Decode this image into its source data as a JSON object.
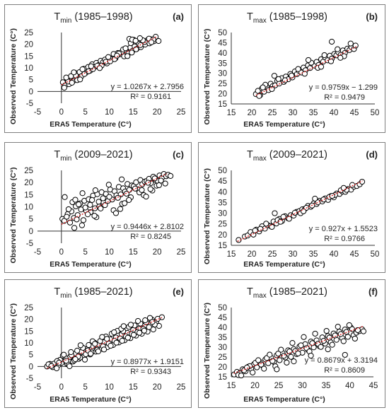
{
  "chart_data": [
    {
      "panel": "(a)",
      "title_main": "T",
      "title_sub": "min",
      "title_rest": " (1985–1998)",
      "type": "scatter",
      "xlabel": "ERA5 Temperature (C°)",
      "ylabel": "Observed Temperature (C°)",
      "xlim": [
        -5,
        25
      ],
      "ylim": [
        -5,
        25
      ],
      "xticks": [
        -5,
        0,
        5,
        10,
        15,
        20,
        25
      ],
      "yticks": [
        -5,
        0,
        5,
        10,
        15,
        20,
        25
      ],
      "x_axis_at": 0,
      "y_axis_at": 0,
      "equation": "y = 1.0267x + 2.7956",
      "r2": "R² = 0.9161",
      "fit": {
        "slope": 1.0267,
        "intercept": 2.7956,
        "x": [
          0,
          20
        ]
      },
      "x": [
        0.3,
        0.8,
        1.2,
        1.6,
        2.0,
        2.4,
        2.9,
        3.3,
        3.8,
        4.2,
        4.7,
        5.1,
        5.6,
        6.0,
        6.4,
        6.9,
        7.3,
        7.8,
        8.2,
        8.7,
        9.1,
        9.5,
        10.0,
        10.4,
        10.9,
        11.3,
        11.8,
        12.2,
        12.6,
        13.1,
        13.5,
        14.0,
        14.4,
        14.9,
        15.3,
        15.7,
        16.2,
        16.6,
        17.1,
        17.5,
        18.0,
        18.4,
        18.8,
        19.3,
        19.7,
        0.6,
        1.4,
        2.2,
        3.0,
        3.9,
        4.8,
        5.7,
        6.6,
        7.5,
        8.4,
        9.3,
        10.2,
        11.1,
        12.0,
        12.9,
        13.8,
        14.7,
        15.6,
        16.5,
        17.4,
        18.3,
        19.2,
        1.0,
        2.6,
        4.4,
        6.2,
        8.0,
        9.8,
        11.6,
        13.4,
        14.5,
        15.1,
        17.0,
        18.8,
        20.3,
        14.2,
        14.8,
        15.5,
        16.4
      ],
      "y": [
        3.9,
        2.6,
        5.2,
        3.1,
        6.5,
        4.3,
        7.8,
        4.8,
        8.2,
        6.5,
        9.6,
        7.9,
        10.4,
        8.8,
        11.5,
        10.3,
        12.1,
        11.2,
        13.0,
        12.4,
        13.5,
        11.9,
        14.2,
        13.6,
        15.9,
        14.1,
        16.3,
        15.8,
        16.7,
        14.9,
        17.4,
        16.2,
        18.6,
        17.3,
        19.1,
        18.0,
        20.2,
        18.8,
        20.6,
        19.9,
        21.8,
        20.4,
        22.1,
        21.3,
        23.2,
        1.6,
        4.2,
        3.7,
        6.8,
        5.1,
        7.4,
        8.6,
        9.5,
        10.9,
        11.0,
        12.6,
        12.8,
        13.7,
        16.1,
        17.8,
        15.0,
        16.5,
        17.9,
        19.7,
        21.0,
        22.4,
        22.0,
        5.9,
        8.1,
        9.4,
        10.7,
        9.9,
        14.6,
        15.2,
        18.3,
        20.5,
        21.9,
        21.7,
        20.9,
        21.4,
        22.3,
        22.0,
        21.5,
        22.6
      ]
    },
    {
      "panel": "(b)",
      "title_main": "T",
      "title_sub": "max",
      "title_rest": " (1985–1998)",
      "type": "scatter",
      "xlabel": "ERA5 Temperature (C°)",
      "ylabel": "Observed Temperature (C°)",
      "xlim": [
        15,
        50
      ],
      "ylim": [
        15,
        50
      ],
      "xticks": [
        15,
        20,
        25,
        30,
        35,
        40,
        45,
        50
      ],
      "yticks": [
        15,
        20,
        25,
        30,
        35,
        40,
        45,
        50
      ],
      "x_axis_at": 15,
      "y_axis_at": 15,
      "equation": "y = 0.9759x − 1.299",
      "r2": "R² = 0.9479",
      "fit": {
        "slope": 0.9759,
        "intercept": -1.299,
        "x": [
          21,
          45.5
        ]
      },
      "x": [
        21.0,
        21.5,
        22.0,
        22.5,
        23.0,
        23.6,
        24.1,
        24.6,
        25.1,
        25.7,
        26.2,
        26.7,
        27.3,
        27.8,
        28.3,
        28.9,
        29.4,
        29.9,
        30.5,
        31.0,
        31.5,
        32.1,
        32.6,
        33.1,
        33.7,
        34.2,
        34.7,
        35.3,
        35.8,
        36.3,
        36.9,
        37.4,
        37.9,
        38.5,
        39.0,
        39.5,
        40.1,
        40.6,
        41.1,
        41.7,
        42.2,
        42.7,
        43.3,
        43.8,
        44.3,
        44.9,
        45.3,
        21.8,
        23.3,
        24.9,
        26.5,
        28.1,
        29.7,
        31.3,
        32.9,
        34.5,
        36.1,
        37.7,
        39.3,
        40.9,
        42.5,
        44.1,
        39.5,
        22.7,
        25.5,
        33.8,
        36.9,
        41.6
      ],
      "y": [
        19.8,
        21.4,
        19.2,
        22.6,
        21.0,
        23.5,
        21.8,
        24.9,
        23.7,
        24.1,
        26.3,
        25.0,
        27.6,
        25.8,
        28.4,
        27.1,
        29.7,
        28.0,
        30.9,
        29.6,
        31.2,
        30.4,
        32.8,
        31.5,
        33.9,
        32.6,
        34.7,
        33.8,
        35.6,
        34.1,
        36.9,
        35.7,
        37.8,
        36.4,
        38.6,
        37.2,
        39.5,
        38.8,
        40.3,
        39.1,
        41.2,
        40.0,
        42.1,
        41.4,
        42.8,
        41.9,
        43.6,
        18.9,
        24.4,
        22.3,
        27.2,
        26.6,
        28.9,
        32.1,
        29.8,
        35.2,
        32.7,
        38.9,
        35.9,
        41.8,
        38.4,
        44.6,
        45.5,
        23.1,
        28.8,
        36.5,
        33.2,
        37.6
      ]
    },
    {
      "panel": "(c)",
      "title_main": "T",
      "title_sub": "min",
      "title_rest": " (2009–2021)",
      "type": "scatter",
      "xlabel": "ERA5 Temperature (C°)",
      "ylabel": "Observed Temperature (C°)",
      "xlim": [
        -5,
        25
      ],
      "ylim": [
        -5,
        25
      ],
      "xticks": [
        -5,
        0,
        5,
        10,
        15,
        20,
        25
      ],
      "yticks": [
        -5,
        0,
        5,
        10,
        15,
        20,
        25
      ],
      "x_axis_at": 0,
      "y_axis_at": 0,
      "equation": "y = 0.9446x + 2.8102",
      "r2": "R² = 0.8245",
      "fit": {
        "slope": 0.9446,
        "intercept": 2.8102,
        "x": [
          0,
          22
        ]
      },
      "x": [
        0.2,
        0.7,
        0.6,
        1.3,
        1.8,
        2.1,
        2.6,
        3.0,
        3.4,
        3.9,
        4.3,
        4.8,
        5.2,
        5.7,
        6.1,
        6.6,
        7.0,
        7.5,
        7.9,
        8.4,
        8.8,
        9.3,
        9.7,
        10.2,
        10.6,
        11.1,
        11.5,
        12.0,
        12.4,
        12.9,
        13.3,
        13.8,
        14.2,
        14.7,
        15.1,
        15.6,
        16.0,
        16.5,
        16.9,
        17.4,
        17.8,
        18.3,
        18.7,
        19.2,
        19.6,
        20.1,
        20.5,
        21.0,
        21.4,
        21.9,
        22.3,
        22.8,
        1.5,
        2.7,
        3.6,
        4.6,
        5.5,
        6.4,
        7.3,
        8.2,
        9.1,
        10.0,
        10.9,
        11.8,
        12.7,
        13.6,
        14.5,
        15.4,
        16.3,
        17.2,
        18.1,
        19.0,
        19.9,
        20.8,
        21.7,
        2.3,
        3.2,
        4.1,
        5.0,
        6.0,
        6.9,
        7.8,
        8.7,
        11.4,
        12.3,
        13.2,
        14.1,
        16.8,
        17.7,
        18.6,
        19.5,
        20.4,
        1.1,
        2.9,
        4.4,
        7.1,
        9.9,
        12.6
      ],
      "y": [
        5.0,
        14.0,
        4.2,
        7.0,
        3.5,
        8.1,
        5.4,
        10.2,
        6.6,
        11.4,
        2.4,
        12.5,
        8.3,
        13.1,
        7.8,
        14.6,
        9.4,
        15.2,
        10.1,
        16.0,
        11.8,
        15.3,
        12.4,
        17.1,
        13.0,
        16.4,
        14.7,
        18.2,
        15.1,
        17.6,
        16.3,
        19.4,
        17.0,
        18.8,
        18.5,
        20.1,
        17.2,
        21.0,
        19.3,
        20.4,
        20.6,
        21.5,
        19.8,
        22.4,
        21.1,
        20.7,
        22.9,
        21.9,
        23.5,
        22.6,
        23.2,
        22.7,
        9.0,
        1.3,
        11.0,
        4.5,
        6.9,
        12.8,
        5.7,
        9.3,
        10.7,
        14.1,
        8.6,
        13.7,
        11.2,
        15.4,
        13.9,
        17.5,
        15.9,
        14.8,
        19.9,
        16.7,
        18.7,
        20.8,
        19.6,
        11.9,
        4.8,
        8.9,
        9.7,
        10.8,
        6.3,
        12.1,
        13.5,
        7.4,
        9.1,
        11.5,
        12.8,
        16.9,
        14.2,
        17.3,
        21.7,
        18.9,
        5.9,
        12.9,
        15.6,
        16.8,
        19.1,
        21.3
      ]
    },
    {
      "panel": "(d)",
      "title_main": "T",
      "title_sub": "max",
      "title_rest": " (2009–2021)",
      "type": "scatter",
      "xlabel": "ERA5 Temperature (C°)",
      "ylabel": "Observed Temperature (C°)",
      "xlim": [
        15,
        50
      ],
      "ylim": [
        15,
        50
      ],
      "xticks": [
        15,
        20,
        25,
        30,
        35,
        40,
        45,
        50
      ],
      "yticks": [
        15,
        20,
        25,
        30,
        35,
        40,
        45,
        50
      ],
      "x_axis_at": 15,
      "y_axis_at": 15,
      "equation": "y = 0.927x + 1.5523",
      "r2": "R² = 0.9766",
      "fit": {
        "slope": 0.927,
        "intercept": 1.5523,
        "x": [
          16.5,
          47
        ]
      },
      "x": [
        16.8,
        18.3,
        19.0,
        19.7,
        20.4,
        21.1,
        21.8,
        22.5,
        23.2,
        23.9,
        24.6,
        25.3,
        26.0,
        26.7,
        27.4,
        28.1,
        28.8,
        29.5,
        30.2,
        30.9,
        31.6,
        32.3,
        33.0,
        33.7,
        34.4,
        35.1,
        35.8,
        36.5,
        37.2,
        37.9,
        38.6,
        39.3,
        40.0,
        40.7,
        41.4,
        42.1,
        42.8,
        43.5,
        44.2,
        44.9,
        45.6,
        46.3,
        46.9,
        20.8,
        22.1,
        23.5,
        24.9,
        26.3,
        27.7,
        29.1,
        30.5,
        31.9,
        33.3,
        34.7,
        36.1,
        37.5,
        38.9,
        40.3,
        41.7,
        43.1,
        44.5,
        25.6,
        27.0,
        32.6,
        35.4,
        39.6,
        42.4
      ],
      "y": [
        17.5,
        19.1,
        19.6,
        21.2,
        20.0,
        22.3,
        21.5,
        23.9,
        22.8,
        24.4,
        24.0,
        26.1,
        25.2,
        27.3,
        26.4,
        28.6,
        27.7,
        29.1,
        28.9,
        30.6,
        31.0,
        31.8,
        32.1,
        33.4,
        33.0,
        34.6,
        34.3,
        35.8,
        35.5,
        36.9,
        36.2,
        38.0,
        37.4,
        39.2,
        39.0,
        40.1,
        40.0,
        41.3,
        41.0,
        42.4,
        42.7,
        43.5,
        44.7,
        21.9,
        22.7,
        25.1,
        23.6,
        26.8,
        28.3,
        27.4,
        30.2,
        30.0,
        32.5,
        33.6,
        35.1,
        36.4,
        37.6,
        38.5,
        40.7,
        40.9,
        43.2,
        30.0,
        26.0,
        30.9,
        36.8,
        38.1,
        41.8
      ]
    },
    {
      "panel": "(e)",
      "title_main": "T",
      "title_sub": "min",
      "title_rest": " (1985–2021)",
      "type": "scatter",
      "xlabel": "ERA5 Temperature (C°)",
      "ylabel": "Observed Temperature (C°)",
      "xlim": [
        -5,
        25
      ],
      "ylim": [
        -5,
        25
      ],
      "xticks": [
        -5,
        0,
        5,
        10,
        15,
        20,
        25
      ],
      "yticks": [
        -5,
        0,
        5,
        10,
        15,
        20,
        25
      ],
      "x_axis_at": 0,
      "y_axis_at": 0,
      "equation": "y = 0.8977x + 1.9151",
      "r2": "R² = 0.9343",
      "fit": {
        "slope": 0.8977,
        "intercept": 1.9151,
        "x": [
          -3,
          21
        ]
      },
      "x": [
        -3.0,
        -2.4,
        -1.8,
        -1.2,
        -0.6,
        0.0,
        0.6,
        1.2,
        1.8,
        2.4,
        3.0,
        3.6,
        4.2,
        4.8,
        5.4,
        6.0,
        6.6,
        7.2,
        7.8,
        8.4,
        9.0,
        9.6,
        10.2,
        10.8,
        11.4,
        12.0,
        12.6,
        13.2,
        13.8,
        14.4,
        15.0,
        15.6,
        16.2,
        16.8,
        17.4,
        18.0,
        18.6,
        19.2,
        19.8,
        20.4,
        21.0,
        -2.7,
        -1.5,
        -0.3,
        0.9,
        2.1,
        3.3,
        4.5,
        5.7,
        6.9,
        8.1,
        9.3,
        10.5,
        11.7,
        12.9,
        14.1,
        15.3,
        16.5,
        17.7,
        18.9,
        20.1,
        -2.1,
        -0.9,
        0.3,
        1.5,
        2.7,
        3.9,
        5.1,
        6.3,
        7.5,
        8.7,
        9.9,
        11.1,
        12.3,
        13.5,
        14.7,
        15.9,
        17.1,
        18.3,
        19.5,
        -1.0,
        0.5,
        1.0,
        2.0,
        3.5,
        4.0,
        5.5,
        6.5,
        7.0,
        8.5,
        9.5,
        11.0,
        12.5,
        13.0,
        14.5,
        16.0,
        17.5,
        18.5,
        19.0,
        -0.5,
        1.7,
        2.9,
        4.9,
        6.1,
        7.7,
        8.9,
        10.3,
        11.5,
        12.7,
        13.9,
        15.1,
        16.3,
        17.3
      ],
      "y": [
        0.0,
        1.1,
        -0.3,
        0.9,
        0.7,
        1.5,
        3.0,
        1.0,
        4.1,
        2.1,
        5.5,
        3.2,
        6.2,
        4.5,
        7.4,
        5.1,
        8.6,
        6.3,
        9.3,
        7.5,
        10.4,
        8.2,
        11.5,
        9.1,
        12.3,
        10.2,
        13.6,
        11.1,
        14.2,
        12.0,
        15.5,
        13.1,
        16.0,
        13.9,
        17.3,
        14.8,
        18.1,
        15.7,
        19.0,
        17.2,
        20.9,
        0.9,
        1.2,
        2.8,
        3.4,
        4.8,
        6.7,
        7.9,
        9.1,
        10.1,
        10.8,
        12.7,
        13.9,
        15.1,
        15.0,
        16.8,
        17.4,
        18.2,
        18.7,
        19.9,
        20.2,
        0.2,
        2.3,
        4.6,
        0.8,
        2.6,
        3.8,
        5.2,
        6.0,
        7.1,
        8.5,
        9.7,
        10.9,
        11.8,
        12.8,
        13.8,
        14.6,
        15.9,
        16.7,
        17.8,
        -0.8,
        5.0,
        2.4,
        6.1,
        4.2,
        9.0,
        6.8,
        10.7,
        9.6,
        12.5,
        11.7,
        14.5,
        16.0,
        17.1,
        17.7,
        19.3,
        19.6,
        20.6,
        18.9,
        1.6,
        0.1,
        3.1,
        2.9,
        5.4,
        6.4,
        7.2,
        8.8,
        10.1,
        10.9,
        12.2,
        13.4,
        14.3,
        15.2
      ]
    },
    {
      "panel": "(f)",
      "title_main": "T",
      "title_sub": "max",
      "title_rest": " (1985–2021)",
      "type": "scatter",
      "xlabel": "ERA5 Temperature (C°)",
      "ylabel": "Observed Temperature (C°)",
      "xlim": [
        15,
        45
      ],
      "ylim": [
        15,
        50
      ],
      "xticks": [
        15,
        20,
        25,
        30,
        35,
        40,
        45
      ],
      "yticks": [
        15,
        20,
        25,
        30,
        35,
        40,
        45,
        50
      ],
      "x_axis_at": 15,
      "y_axis_at": 15,
      "equation": "y = 0.8679x + 3.3194",
      "r2": "R² = 0.8609",
      "fit": {
        "slope": 0.8679,
        "intercept": 3.3194,
        "x": [
          15.5,
          43
        ]
      },
      "x": [
        15.6,
        16.2,
        16.8,
        17.4,
        18.0,
        18.6,
        19.2,
        19.8,
        20.4,
        21.0,
        21.6,
        22.2,
        22.8,
        23.4,
        24.0,
        24.6,
        25.2,
        25.8,
        26.4,
        27.0,
        27.6,
        28.2,
        28.8,
        29.4,
        30.0,
        30.6,
        31.2,
        31.8,
        32.4,
        33.0,
        33.6,
        34.2,
        34.8,
        35.4,
        36.0,
        36.6,
        37.2,
        37.8,
        38.4,
        39.0,
        39.6,
        40.2,
        40.8,
        41.4,
        42.0,
        42.6,
        16.5,
        17.7,
        18.9,
        20.1,
        21.3,
        22.5,
        23.7,
        24.9,
        26.1,
        27.3,
        28.5,
        29.7,
        30.9,
        32.1,
        33.3,
        34.5,
        35.7,
        36.9,
        38.1,
        39.3,
        40.5,
        41.7,
        42.9,
        17.1,
        19.5,
        21.9,
        24.3,
        26.7,
        29.1,
        31.5,
        33.9,
        36.3,
        38.7,
        41.1,
        18.3,
        20.7,
        23.1,
        25.5,
        27.9,
        30.3,
        32.7,
        35.1,
        37.5,
        39.9,
        24.6,
        28.2,
        31.8,
        35.4,
        39.0
      ],
      "y": [
        16.2,
        17.5,
        16.9,
        18.8,
        17.8,
        20.1,
        19.0,
        21.4,
        19.8,
        22.6,
        20.7,
        23.8,
        21.9,
        24.6,
        22.5,
        25.9,
        23.4,
        27.1,
        24.8,
        28.4,
        25.1,
        29.0,
        26.5,
        30.3,
        27.2,
        31.5,
        28.6,
        32.8,
        29.9,
        33.4,
        30.5,
        34.9,
        31.8,
        35.6,
        32.4,
        36.9,
        33.7,
        37.8,
        34.6,
        38.9,
        35.2,
        40.0,
        36.0,
        37.3,
        38.1,
        39.0,
        15.9,
        18.3,
        20.4,
        22.1,
        21.2,
        24.5,
        23.0,
        26.7,
        25.6,
        27.8,
        28.0,
        30.9,
        29.5,
        32.0,
        31.7,
        33.2,
        34.8,
        35.9,
        36.6,
        37.7,
        39.1,
        38.6,
        38.0,
        15.7,
        17.2,
        19.1,
        20.3,
        22.2,
        26.8,
        27.8,
        30.1,
        31.2,
        33.0,
        34.3,
        19.7,
        23.4,
        26.2,
        28.7,
        32.1,
        35.1,
        36.8,
        38.2,
        40.3,
        41.1,
        18.8,
        22.8,
        25.7,
        28.9,
        26.1
      ]
    }
  ]
}
